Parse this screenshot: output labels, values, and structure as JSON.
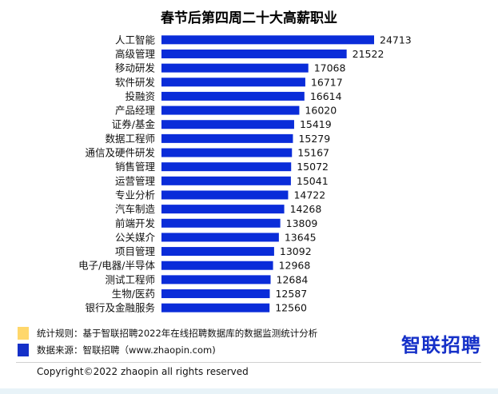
{
  "colors": {
    "bar": "#0a2cd9",
    "rule_square": "#ffd76b",
    "source_square": "#1530c8",
    "logo": "#1530c8"
  },
  "chart_data": {
    "type": "bar",
    "orientation": "horizontal",
    "title": "春节后第四周二十大高薪职业",
    "categories": [
      "人工智能",
      "高级管理",
      "移动研发",
      "软件研发",
      "投融资",
      "产品经理",
      "证券/基金",
      "数据工程师",
      "通信及硬件研发",
      "销售管理",
      "运营管理",
      "专业分析",
      "汽车制造",
      "前端开发",
      "公关媒介",
      "项目管理",
      "电子/电器/半导体",
      "测试工程师",
      "生物/医药",
      "银行及金融服务"
    ],
    "values": [
      24713,
      21522,
      17068,
      16717,
      16614,
      16020,
      15419,
      15279,
      15167,
      15072,
      15041,
      14722,
      14268,
      13809,
      13645,
      13092,
      12968,
      12684,
      12587,
      12560
    ],
    "value_labels": [
      "24713",
      "21522",
      "17068",
      "16717",
      "16614",
      "16020",
      "15419",
      "15279",
      "15167",
      "15072",
      "15041",
      "14722",
      "14268",
      "13809",
      "13645",
      "13092",
      "12968",
      "12684",
      "12587",
      "12560"
    ],
    "xlim": [
      0,
      24713
    ],
    "grid": false,
    "legend": "none"
  },
  "notes": {
    "rule": "统计规则：基于智联招聘2022年在线招聘数据库的数据监测统计分析",
    "source": "数据来源：智联招聘（www.zhaopin.com)"
  },
  "logo": "智联招聘",
  "copyright": "Copyright©2022 zhaopin all rights reserved"
}
